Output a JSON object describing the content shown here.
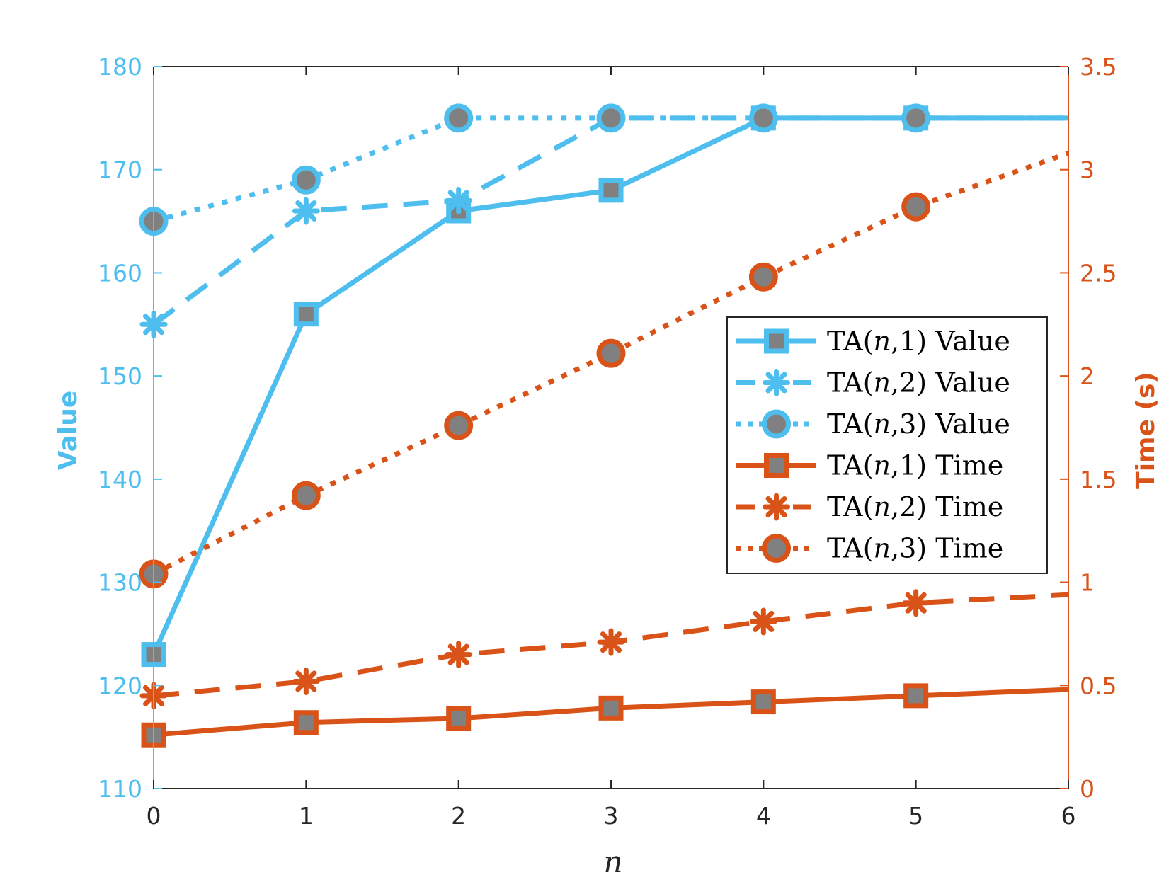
{
  "chart_data": {
    "type": "line",
    "title": "",
    "xlabel": "n",
    "ylabel_left": "Value",
    "ylabel_right": "Time (s)",
    "xlim": [
      0,
      6
    ],
    "ylim_left": [
      110,
      180
    ],
    "ylim_right": [
      0,
      3.5
    ],
    "x_ticks": [
      "0",
      "1",
      "2",
      "3",
      "4",
      "5",
      "6"
    ],
    "y_ticks_left": [
      "110",
      "120",
      "130",
      "140",
      "150",
      "160",
      "170",
      "180"
    ],
    "y_ticks_right": [
      "0",
      "0.5",
      "1",
      "1.5",
      "2",
      "2.5",
      "3",
      "3.5"
    ],
    "grid": false,
    "legend_position": "center-right",
    "colors": {
      "value": "#4DBEEE",
      "time": "#D95319",
      "marker_fill": "#808080",
      "axis": "#262626"
    },
    "series": [
      {
        "name": "TA(n,1) Value",
        "prefix": "TA(",
        "var": "n",
        "suffix": ",1)",
        "kind": "Value",
        "axis": "left",
        "style": "solid",
        "marker": "square",
        "x": [
          0,
          1,
          2,
          3,
          4,
          5,
          6
        ],
        "values": [
          123,
          156,
          166,
          168,
          175,
          175,
          175
        ],
        "marker_count": 6
      },
      {
        "name": "TA(n,2) Value",
        "prefix": "TA(",
        "var": "n",
        "suffix": ",2)",
        "kind": "Value",
        "axis": "left",
        "style": "dashed",
        "marker": "asterisk",
        "x": [
          0,
          1,
          2,
          3,
          4,
          5,
          6
        ],
        "values": [
          155,
          166,
          167,
          175,
          175,
          175,
          175
        ],
        "marker_count": 6
      },
      {
        "name": "TA(n,3) Value",
        "prefix": "TA(",
        "var": "n",
        "suffix": ",3)",
        "kind": "Value",
        "axis": "left",
        "style": "dotted",
        "marker": "circle",
        "x": [
          0,
          1,
          2,
          3,
          4,
          5,
          6
        ],
        "values": [
          165,
          169,
          175,
          175,
          175,
          175,
          175
        ],
        "marker_count": 6
      },
      {
        "name": "TA(n,1) Time",
        "prefix": "TA(",
        "var": "n",
        "suffix": ",1)",
        "kind": "Time",
        "axis": "right",
        "style": "solid",
        "marker": "square",
        "x": [
          0,
          1,
          2,
          3,
          4,
          5,
          6
        ],
        "values": [
          0.26,
          0.32,
          0.34,
          0.39,
          0.42,
          0.45,
          0.48
        ],
        "marker_count": 6
      },
      {
        "name": "TA(n,2) Time",
        "prefix": "TA(",
        "var": "n",
        "suffix": ",2)",
        "kind": "Time",
        "axis": "right",
        "style": "dashed",
        "marker": "asterisk",
        "x": [
          0,
          1,
          2,
          3,
          4,
          5,
          6
        ],
        "values": [
          0.45,
          0.52,
          0.65,
          0.71,
          0.81,
          0.9,
          0.94
        ],
        "marker_count": 6
      },
      {
        "name": "TA(n,3) Time",
        "prefix": "TA(",
        "var": "n",
        "suffix": ",3)",
        "kind": "Time",
        "axis": "right",
        "style": "dotted",
        "marker": "circle",
        "x": [
          0,
          1,
          2,
          3,
          4,
          5,
          6
        ],
        "values": [
          1.04,
          1.42,
          1.76,
          2.11,
          2.48,
          2.82,
          3.08
        ],
        "marker_count": 6
      }
    ]
  }
}
